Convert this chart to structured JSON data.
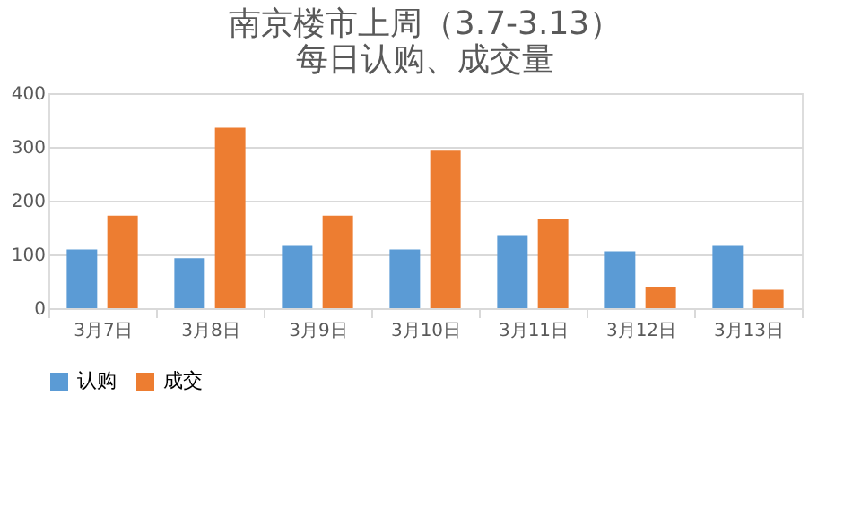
{
  "chart_data": {
    "type": "bar",
    "title": "南京楼市上周（3.7-3.13）每日认购、成交量",
    "categories": [
      "3月7日",
      "3月8日",
      "3月9日",
      "3月10日",
      "3月11日",
      "3月12日",
      "3月13日"
    ],
    "series": [
      {
        "name": "认购",
        "color": "#5b9bd5",
        "values": [
          109,
          93,
          116,
          109,
          136,
          106,
          116
        ]
      },
      {
        "name": "成交",
        "color": "#ed7d31",
        "values": [
          172,
          336,
          172,
          293,
          165,
          40,
          34
        ]
      }
    ],
    "ylim": [
      0,
      400
    ],
    "yticks": [
      0,
      100,
      200,
      300,
      400
    ],
    "grid": "y",
    "legend": "bottom"
  }
}
